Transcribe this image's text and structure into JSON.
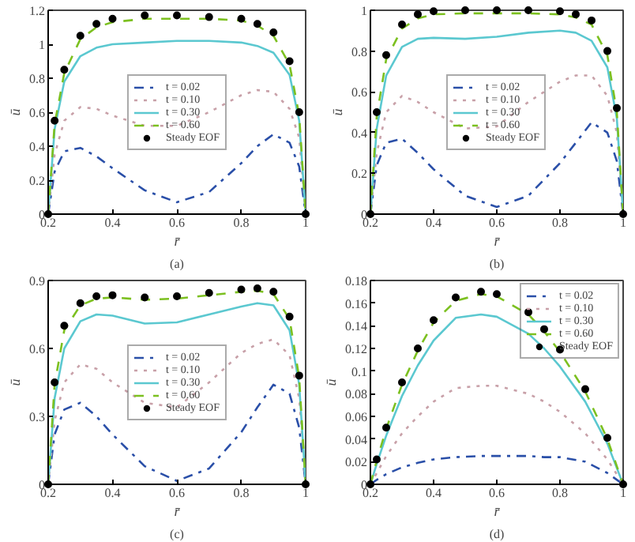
{
  "chart_data": [
    {
      "type": "line",
      "xlabel": "r̄",
      "ylabel": "ū",
      "annotations": [
        "(a)"
      ],
      "xlim": [
        0.2,
        1
      ],
      "xticks": [
        0.2,
        0.4,
        0.6,
        0.8,
        1
      ],
      "ylim": [
        0,
        1.2
      ],
      "yticks": [
        0,
        0.2,
        0.4,
        0.6,
        0.8,
        1,
        1.2
      ],
      "grid": false,
      "legend": "center",
      "x": [
        0.2,
        0.22,
        0.25,
        0.3,
        0.35,
        0.4,
        0.5,
        0.6,
        0.7,
        0.8,
        0.85,
        0.9,
        0.95,
        0.98,
        1.0
      ],
      "series": [
        {
          "name": "t = 0.02",
          "color": "#2a4fa8",
          "line_style": "dashdot",
          "values": [
            0,
            0.25,
            0.37,
            0.39,
            0.34,
            0.27,
            0.14,
            0.07,
            0.13,
            0.3,
            0.4,
            0.47,
            0.42,
            0.28,
            0
          ]
        },
        {
          "name": "t = 0.10",
          "color": "#c8a0a8",
          "line_style": "dotted",
          "values": [
            0,
            0.35,
            0.55,
            0.63,
            0.62,
            0.58,
            0.52,
            0.52,
            0.6,
            0.7,
            0.73,
            0.72,
            0.62,
            0.45,
            0
          ]
        },
        {
          "name": "t = 0.30",
          "color": "#5bc8d0",
          "line_style": "solid",
          "values": [
            0,
            0.5,
            0.78,
            0.93,
            0.98,
            1.0,
            1.01,
            1.02,
            1.02,
            1.01,
            0.99,
            0.95,
            0.82,
            0.55,
            0
          ]
        },
        {
          "name": "t = 0.60",
          "color": "#7cc020",
          "line_style": "dashed",
          "values": [
            0,
            0.53,
            0.83,
            1.03,
            1.1,
            1.13,
            1.15,
            1.15,
            1.15,
            1.14,
            1.11,
            1.05,
            0.88,
            0.58,
            0
          ]
        },
        {
          "name": "Steady EOF",
          "color": "#000000",
          "type": "scatter",
          "marker": "circle",
          "values": [
            0,
            0.55,
            0.85,
            1.05,
            1.12,
            1.15,
            1.17,
            1.17,
            1.16,
            1.15,
            1.12,
            1.07,
            0.9,
            0.6,
            0
          ]
        }
      ]
    },
    {
      "type": "line",
      "xlabel": "r̄",
      "ylabel": "ū",
      "annotations": [
        "(b)"
      ],
      "xlim": [
        0.2,
        1
      ],
      "xticks": [
        0.2,
        0.4,
        0.6,
        0.8,
        1
      ],
      "ylim": [
        0,
        1
      ],
      "yticks": [
        0,
        0.2,
        0.4,
        0.6,
        0.8,
        1
      ],
      "grid": false,
      "legend": "center",
      "x": [
        0.2,
        0.22,
        0.25,
        0.3,
        0.35,
        0.4,
        0.5,
        0.6,
        0.7,
        0.8,
        0.85,
        0.9,
        0.95,
        0.98,
        1.0
      ],
      "series": [
        {
          "name": "t = 0.02",
          "color": "#2a4fa8",
          "line_style": "dashdot",
          "values": [
            0,
            0.24,
            0.35,
            0.37,
            0.3,
            0.22,
            0.09,
            0.035,
            0.09,
            0.25,
            0.35,
            0.45,
            0.4,
            0.26,
            0
          ]
        },
        {
          "name": "t = 0.10",
          "color": "#c8a0a8",
          "line_style": "dotted",
          "values": [
            0,
            0.3,
            0.5,
            0.58,
            0.55,
            0.5,
            0.42,
            0.43,
            0.55,
            0.65,
            0.68,
            0.68,
            0.58,
            0.4,
            0
          ]
        },
        {
          "name": "t = 0.30",
          "color": "#5bc8d0",
          "line_style": "solid",
          "values": [
            0,
            0.42,
            0.68,
            0.82,
            0.86,
            0.865,
            0.86,
            0.87,
            0.89,
            0.9,
            0.89,
            0.85,
            0.72,
            0.47,
            0
          ]
        },
        {
          "name": "t = 0.60",
          "color": "#7cc020",
          "line_style": "dashed",
          "values": [
            0,
            0.48,
            0.76,
            0.91,
            0.96,
            0.98,
            0.985,
            0.985,
            0.985,
            0.98,
            0.965,
            0.93,
            0.78,
            0.5,
            0
          ]
        },
        {
          "name": "Steady EOF",
          "color": "#000000",
          "type": "scatter",
          "marker": "circle",
          "values": [
            0,
            0.5,
            0.78,
            0.93,
            0.98,
            0.995,
            1.0,
            1.0,
            1.0,
            0.995,
            0.98,
            0.95,
            0.8,
            0.52,
            0
          ]
        }
      ]
    },
    {
      "type": "line",
      "xlabel": "r̄",
      "ylabel": "ū",
      "annotations": [
        "(c)"
      ],
      "xlim": [
        0.2,
        1
      ],
      "xticks": [
        0.2,
        0.4,
        0.6,
        0.8,
        1
      ],
      "ylim": [
        0,
        0.9
      ],
      "yticks": [
        0,
        0.3,
        0.6,
        0.9
      ],
      "grid": false,
      "legend": "center",
      "x": [
        0.2,
        0.22,
        0.25,
        0.3,
        0.35,
        0.4,
        0.5,
        0.6,
        0.7,
        0.8,
        0.85,
        0.9,
        0.95,
        0.98,
        1.0
      ],
      "series": [
        {
          "name": "t = 0.02",
          "color": "#2a4fa8",
          "line_style": "dashdot",
          "values": [
            0,
            0.22,
            0.33,
            0.36,
            0.3,
            0.22,
            0.08,
            0.015,
            0.07,
            0.23,
            0.34,
            0.44,
            0.4,
            0.25,
            0
          ]
        },
        {
          "name": "t = 0.10",
          "color": "#c8a0a8",
          "line_style": "dotted",
          "values": [
            0,
            0.28,
            0.45,
            0.53,
            0.51,
            0.45,
            0.36,
            0.34,
            0.45,
            0.58,
            0.62,
            0.64,
            0.57,
            0.38,
            0
          ]
        },
        {
          "name": "t = 0.30",
          "color": "#5bc8d0",
          "line_style": "solid",
          "values": [
            0,
            0.38,
            0.6,
            0.72,
            0.75,
            0.745,
            0.71,
            0.715,
            0.75,
            0.785,
            0.8,
            0.79,
            0.68,
            0.44,
            0
          ]
        },
        {
          "name": "t = 0.60",
          "color": "#7cc020",
          "line_style": "dashed",
          "values": [
            0,
            0.44,
            0.68,
            0.79,
            0.82,
            0.825,
            0.815,
            0.82,
            0.835,
            0.85,
            0.855,
            0.84,
            0.73,
            0.47,
            0
          ]
        },
        {
          "name": "Steady EOF",
          "color": "#000000",
          "type": "scatter",
          "marker": "circle",
          "values": [
            0,
            0.45,
            0.7,
            0.8,
            0.83,
            0.835,
            0.825,
            0.83,
            0.845,
            0.86,
            0.865,
            0.85,
            0.74,
            0.48,
            0
          ]
        }
      ]
    },
    {
      "type": "line",
      "xlabel": "r̄",
      "ylabel": "ū",
      "annotations": [
        "(d)"
      ],
      "xlim": [
        0.2,
        1
      ],
      "xticks": [
        0.2,
        0.4,
        0.6,
        0.8,
        1
      ],
      "ylim": [
        0,
        0.18
      ],
      "yticks": [
        0,
        0.02,
        0.04,
        0.06,
        0.08,
        0.1,
        0.12,
        0.14,
        0.16,
        0.18
      ],
      "grid": false,
      "legend": "top right",
      "x": [
        0.2,
        0.22,
        0.25,
        0.3,
        0.35,
        0.4,
        0.47,
        0.55,
        0.6,
        0.7,
        0.75,
        0.8,
        0.88,
        0.95,
        1.0
      ],
      "series": [
        {
          "name": "t = 0.02",
          "color": "#2a4fa8",
          "line_style": "dashdot",
          "values": [
            0,
            0.004,
            0.009,
            0.015,
            0.019,
            0.022,
            0.024,
            0.025,
            0.025,
            0.025,
            0.024,
            0.024,
            0.02,
            0.01,
            0
          ]
        },
        {
          "name": "t = 0.10",
          "color": "#c8a0a8",
          "line_style": "dotted",
          "values": [
            0,
            0.01,
            0.025,
            0.045,
            0.06,
            0.073,
            0.085,
            0.087,
            0.087,
            0.08,
            0.073,
            0.064,
            0.045,
            0.022,
            0
          ]
        },
        {
          "name": "t = 0.30",
          "color": "#5bc8d0",
          "line_style": "solid",
          "values": [
            0,
            0.018,
            0.043,
            0.078,
            0.105,
            0.127,
            0.147,
            0.15,
            0.148,
            0.133,
            0.12,
            0.104,
            0.073,
            0.036,
            0
          ]
        },
        {
          "name": "t = 0.60",
          "color": "#7cc020",
          "line_style": "dashed",
          "values": [
            0,
            0.021,
            0.049,
            0.088,
            0.118,
            0.143,
            0.162,
            0.168,
            0.166,
            0.15,
            0.135,
            0.117,
            0.082,
            0.04,
            0
          ]
        },
        {
          "name": "Steady EOF",
          "color": "#000000",
          "type": "scatter",
          "marker": "circle",
          "values": [
            0,
            0.022,
            0.05,
            0.09,
            0.12,
            0.145,
            0.165,
            0.17,
            0.168,
            0.152,
            0.137,
            0.119,
            0.084,
            0.041,
            0
          ]
        }
      ]
    }
  ]
}
